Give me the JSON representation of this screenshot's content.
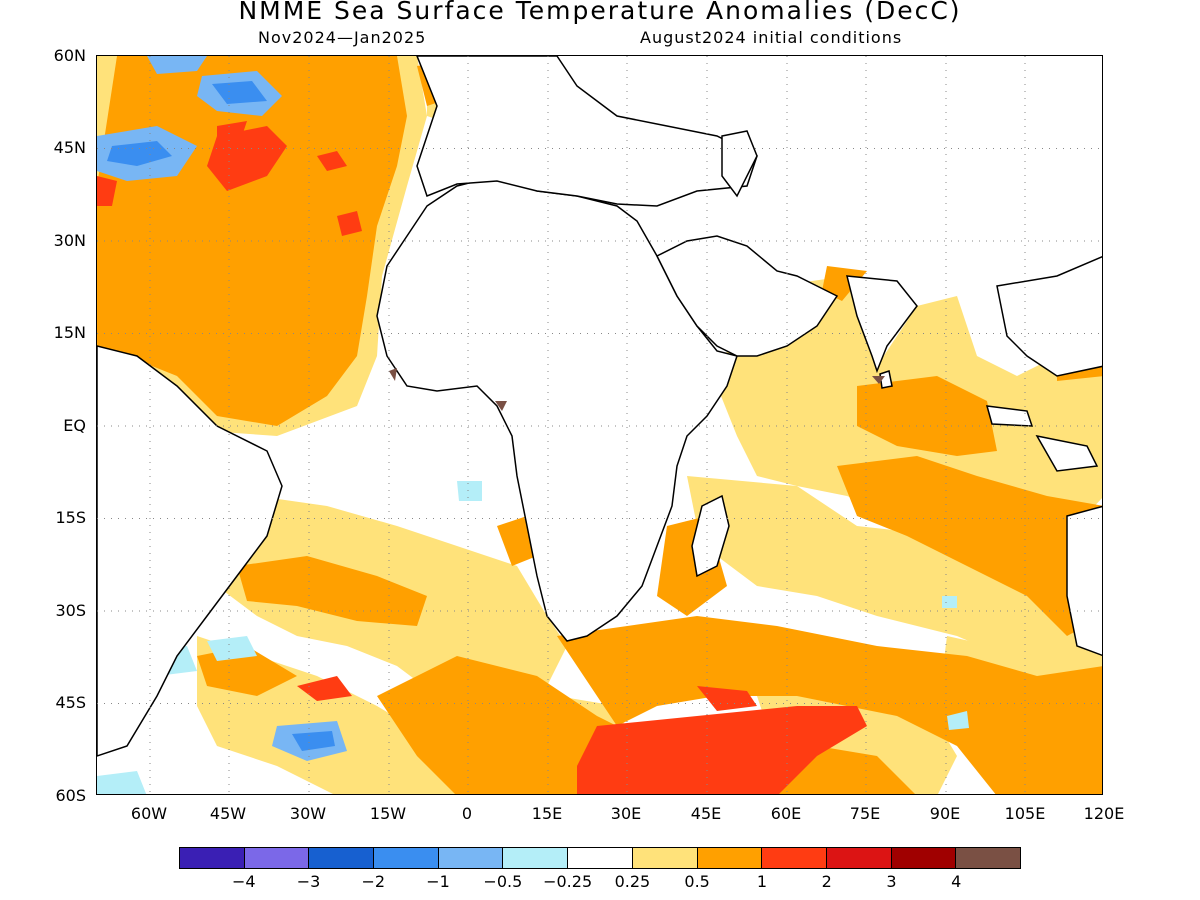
{
  "title": "NMME Sea Surface Temperature Anomalies (DecC)",
  "subtitle_left": "Nov2024—Jan2025",
  "subtitle_right": "August2024 initial conditions",
  "lat_labels": [
    "60N",
    "45N",
    "30N",
    "15N",
    "EQ",
    "15S",
    "30S",
    "45S",
    "60S"
  ],
  "lon_labels": [
    "60W",
    "45W",
    "30W",
    "15W",
    "0",
    "15E",
    "30E",
    "45E",
    "60E",
    "75E",
    "90E",
    "105E",
    "120E"
  ],
  "colorbar": {
    "colors": [
      "#3a1fb4",
      "#7b68e8",
      "#1760d0",
      "#3a8ef0",
      "#78b6f4",
      "#b4eef8",
      "#ffffff",
      "#ffe27a",
      "#ffa000",
      "#ff3c12",
      "#dc1414",
      "#a00000",
      "#7a5044"
    ],
    "labels": [
      "−4",
      "−3",
      "−2",
      "−1",
      "−0.5",
      "−0.25",
      "0.25",
      "0.5",
      "1",
      "2",
      "3",
      "4"
    ]
  },
  "map": {
    "region": "Atlantic and Indian Oceans, 70W–120E, 60S–60N",
    "grid": "dotted",
    "shading_legend": "sea surface temperature anomaly (DecC)"
  }
}
